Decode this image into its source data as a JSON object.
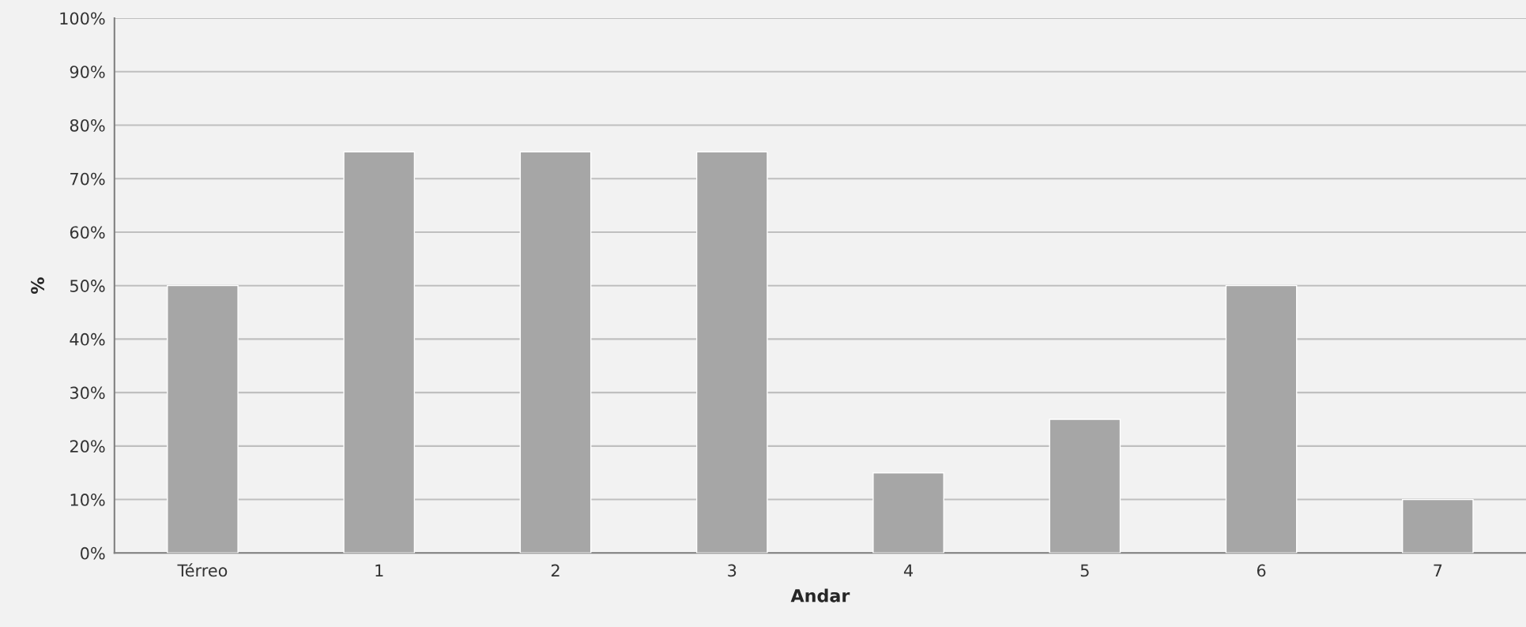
{
  "chart_data": {
    "type": "bar",
    "xlabel": "Andar",
    "ylabel": "%",
    "categories": [
      "Térreo",
      "1",
      "2",
      "3",
      "4",
      "5",
      "6",
      "7"
    ],
    "values": [
      50,
      75,
      75,
      75,
      15,
      25,
      50,
      10
    ],
    "color": "#a6a6a6",
    "ylim": [
      0,
      100
    ],
    "yticks": [
      {
        "value": 0,
        "label": "0%"
      },
      {
        "value": 10,
        "label": "10%"
      },
      {
        "value": 20,
        "label": "20%"
      },
      {
        "value": 30,
        "label": "30%"
      },
      {
        "value": 40,
        "label": "40%"
      },
      {
        "value": 50,
        "label": "50%"
      },
      {
        "value": 60,
        "label": "60%"
      },
      {
        "value": 70,
        "label": "70%"
      },
      {
        "value": 80,
        "label": "80%"
      },
      {
        "value": 90,
        "label": "90%"
      },
      {
        "value": 100,
        "label": "100%"
      }
    ],
    "grid": "y",
    "legend": false
  }
}
